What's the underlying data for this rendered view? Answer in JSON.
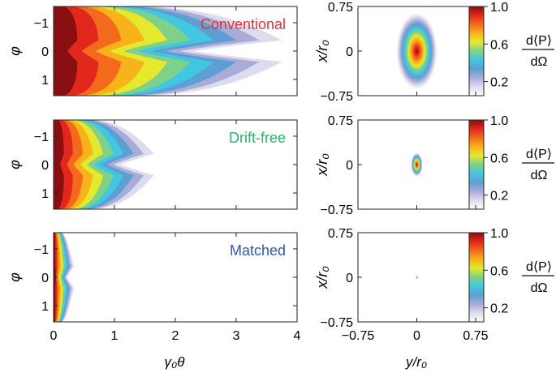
{
  "chart_data": [
    {
      "type": "heatmap",
      "panel": "left",
      "title": "Conventional",
      "title_color": "#e0343c",
      "xlabel": "γ₀θ",
      "ylabel": "φ",
      "xlim": [
        0,
        4
      ],
      "ylim": [
        -1.57,
        1.57
      ],
      "xticks": [
        "0",
        "1",
        "2",
        "3",
        "4"
      ],
      "yticks": [
        "−1",
        "0",
        "1"
      ],
      "ridge_extent_at_phi0": 2.3,
      "wings_extent": 3.1,
      "tail_extent": 3.85
    },
    {
      "type": "heatmap",
      "panel": "left",
      "title": "Drift-free",
      "title_color": "#2db36b",
      "xlabel": "γ₀θ",
      "ylabel": "φ",
      "xlim": [
        0,
        4
      ],
      "ylim": [
        -1.57,
        1.57
      ],
      "xticks": [
        "0",
        "1",
        "2",
        "3",
        "4"
      ],
      "yticks": [
        "−1",
        "0",
        "1"
      ],
      "ridge_extent_at_phi0": 1.1,
      "wings_extent": 1.35,
      "tail_extent": 1.7
    },
    {
      "type": "heatmap",
      "panel": "left",
      "title": "Matched",
      "title_color": "#2a5db0",
      "xlabel": "γ₀θ",
      "ylabel": "φ",
      "xlim": [
        0,
        4
      ],
      "ylim": [
        -1.57,
        1.57
      ],
      "xticks": [
        "0",
        "1",
        "2",
        "3",
        "4"
      ],
      "yticks": [
        "−1",
        "0",
        "1"
      ],
      "ridge_extent_at_phi0": 0.22,
      "wings_extent": 0.25,
      "tail_extent": 0.36
    },
    {
      "type": "heatmap",
      "panel": "right",
      "xlabel": "y/r₀",
      "ylabel": "x/r₀",
      "xlim": [
        -0.75,
        0.75
      ],
      "ylim": [
        -0.75,
        0.75
      ],
      "xticks": [
        "−0.75",
        "0",
        "0.75"
      ],
      "yticks": [
        "−0.75",
        "0",
        "0.75"
      ],
      "spot_half_width": 0.26,
      "spot_half_height": 0.64,
      "colorbar": {
        "ticks": [
          "1.0",
          "0.6",
          "0.2"
        ],
        "label_numerator": "d⟨P⟩",
        "label_denominator": "dΩ"
      }
    },
    {
      "type": "heatmap",
      "panel": "right",
      "xlabel": "y/r₀",
      "ylabel": "x/r₀",
      "xlim": [
        -0.75,
        0.75
      ],
      "ylim": [
        -0.75,
        0.75
      ],
      "xticks": [
        "−0.75",
        "0",
        "0.75"
      ],
      "yticks": [
        "−0.75",
        "0",
        "0.75"
      ],
      "spot_half_width": 0.075,
      "spot_half_height": 0.2,
      "colorbar": {
        "ticks": [
          "1.0",
          "0.6",
          "0.2"
        ],
        "label_numerator": "d⟨P⟩",
        "label_denominator": "dΩ"
      }
    },
    {
      "type": "heatmap",
      "panel": "right",
      "xlabel": "y/r₀",
      "ylabel": "x/r₀",
      "xlim": [
        -0.75,
        0.75
      ],
      "ylim": [
        -0.75,
        0.75
      ],
      "xticks": [
        "−0.75",
        "0",
        "0.75"
      ],
      "yticks": [
        "−0.75",
        "0",
        "0.75"
      ],
      "spot_half_width": 0.012,
      "spot_half_height": 0.03,
      "colorbar": {
        "ticks": [
          "1.0",
          "0.6",
          "0.2"
        ],
        "label_numerator": "d⟨P⟩",
        "label_denominator": "dΩ"
      }
    }
  ],
  "colormap": [
    "#ffffff",
    "#dcdcee",
    "#a9acd6",
    "#5b9fd4",
    "#42c7e0",
    "#7ed188",
    "#e4e92e",
    "#f8b21a",
    "#f46a1c",
    "#e2271c",
    "#8a0f10"
  ]
}
